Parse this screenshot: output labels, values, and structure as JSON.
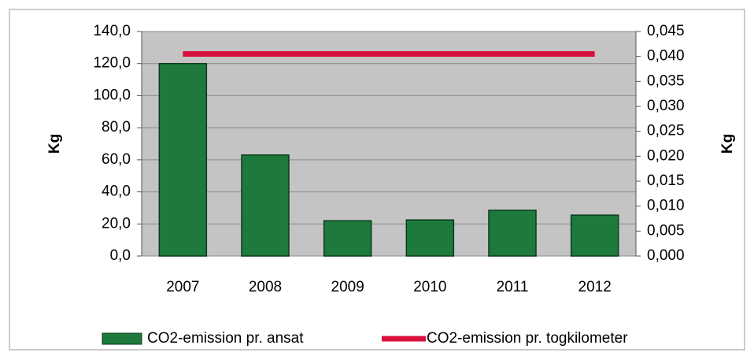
{
  "chart_data": {
    "type": "bar",
    "categories": [
      "2007",
      "2008",
      "2009",
      "2010",
      "2011",
      "2012"
    ],
    "series": [
      {
        "name": "CO2-emission pr. ansat",
        "type": "bar",
        "axis": "y",
        "color": "#1e7a3c",
        "values": [
          120,
          63,
          22,
          22.5,
          28.5,
          25.5
        ]
      },
      {
        "name": "CO2-emission pr. togkilometer",
        "type": "line",
        "axis": "y2",
        "color": "#d8103c",
        "values": [
          0.0405,
          0.0405,
          0.0405,
          0.0405,
          0.0405,
          0.0405
        ]
      }
    ],
    "ylabel": "Kg",
    "y2label": "Kg",
    "ylim": [
      0,
      140
    ],
    "yticks": [
      {
        "value": 0,
        "label": "0,0"
      },
      {
        "value": 20,
        "label": "20,0"
      },
      {
        "value": 40,
        "label": "40,0"
      },
      {
        "value": 60,
        "label": "60,0"
      },
      {
        "value": 80,
        "label": "80,0"
      },
      {
        "value": 100,
        "label": "100,0"
      },
      {
        "value": 120,
        "label": "120,0"
      },
      {
        "value": 140,
        "label": "140,0"
      }
    ],
    "y2lim": [
      0,
      0.045
    ],
    "y2ticks": [
      {
        "value": 0,
        "label": "0,000"
      },
      {
        "value": 0.005,
        "label": "0,005"
      },
      {
        "value": 0.01,
        "label": "0,010"
      },
      {
        "value": 0.015,
        "label": "0,015"
      },
      {
        "value": 0.02,
        "label": "0,020"
      },
      {
        "value": 0.025,
        "label": "0,025"
      },
      {
        "value": 0.03,
        "label": "0,030"
      },
      {
        "value": 0.035,
        "label": "0,035"
      },
      {
        "value": 0.04,
        "label": "0,040"
      },
      {
        "value": 0.045,
        "label": "0,045"
      }
    ],
    "grid": true,
    "legend": "bottom",
    "plot_background": "#c4c4c4"
  }
}
